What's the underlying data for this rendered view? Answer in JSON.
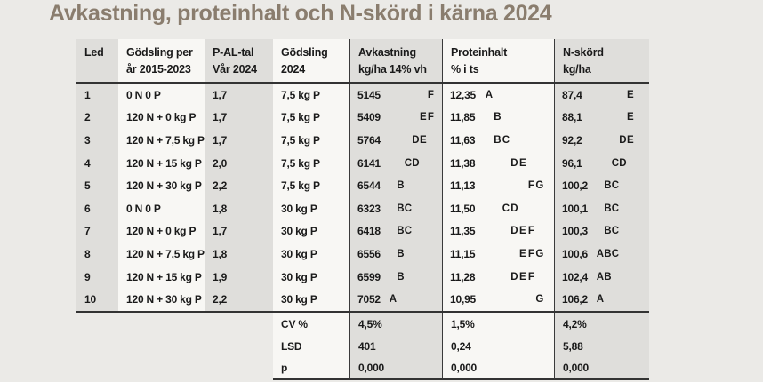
{
  "title": "Avkastning, proteinhalt och N-skörd i kärna 2024",
  "colors": {
    "page_bg": "#ebeae7",
    "band_gray": "#dfdedb",
    "band_white": "#f8f7f4",
    "title_color": "#8a7d6e",
    "rule_color": "#333333",
    "text_color": "#1a1a1a"
  },
  "table": {
    "columns": [
      {
        "id": "led",
        "line1": "Led",
        "line2": ""
      },
      {
        "id": "godsling_per_ar",
        "line1": "Gödsling per",
        "line2": "år 2015-2023"
      },
      {
        "id": "pal",
        "line1": "P-AL-tal",
        "line2": "Vår 2024"
      },
      {
        "id": "godsling_2024",
        "line1": "Gödsling",
        "line2": "2024"
      },
      {
        "id": "avkastning",
        "line1": "Avkastning",
        "line2": "kg/ha 14% vh"
      },
      {
        "id": "proteinhalt",
        "line1": "Proteinhalt",
        "line2": "% i ts"
      },
      {
        "id": "nskord",
        "line1": "N-skörd",
        "line2": "kg/ha"
      }
    ],
    "rows": [
      {
        "led": "1",
        "treatment": "0 N 0 P",
        "pal": "1,7",
        "dose": "7,5 kg P",
        "avkastning": {
          "value": "5145",
          "letters": "F"
        },
        "proteinhalt": {
          "value": "12,35",
          "letters": "A"
        },
        "nskord": {
          "value": "87,4",
          "letters": "E"
        }
      },
      {
        "led": "2",
        "treatment": "120 N + 0 kg P",
        "pal": "1,7",
        "dose": "7,5 kg P",
        "avkastning": {
          "value": "5409",
          "letters": "EF"
        },
        "proteinhalt": {
          "value": "11,85",
          "letters": "B"
        },
        "nskord": {
          "value": "88,1",
          "letters": "E"
        }
      },
      {
        "led": "3",
        "treatment": "120 N + 7,5 kg P",
        "pal": "1,7",
        "dose": "7,5 kg P",
        "avkastning": {
          "value": "5764",
          "letters": "DE"
        },
        "proteinhalt": {
          "value": "11,63",
          "letters": "BC"
        },
        "nskord": {
          "value": "92,2",
          "letters": "DE"
        }
      },
      {
        "led": "4",
        "treatment": "120 N + 15 kg P",
        "pal": "2,0",
        "dose": "7,5 kg P",
        "avkastning": {
          "value": "6141",
          "letters": "CD"
        },
        "proteinhalt": {
          "value": "11,38",
          "letters": "DE"
        },
        "nskord": {
          "value": "96,1",
          "letters": "CD"
        }
      },
      {
        "led": "5",
        "treatment": "120 N + 30 kg P",
        "pal": "2,2",
        "dose": "7,5 kg P",
        "avkastning": {
          "value": "6544",
          "letters": "B"
        },
        "proteinhalt": {
          "value": "11,13",
          "letters": "FG"
        },
        "nskord": {
          "value": "100,2",
          "letters": "BC"
        }
      },
      {
        "led": "6",
        "treatment": "0 N 0 P",
        "pal": "1,8",
        "dose": "30 kg P",
        "avkastning": {
          "value": "6323",
          "letters": "BC"
        },
        "proteinhalt": {
          "value": "11,50",
          "letters": "CD"
        },
        "nskord": {
          "value": "100,1",
          "letters": "BC"
        }
      },
      {
        "led": "7",
        "treatment": "120 N + 0 kg P",
        "pal": "1,7",
        "dose": "30 kg P",
        "avkastning": {
          "value": "6418",
          "letters": "BC"
        },
        "proteinhalt": {
          "value": "11,35",
          "letters": "DEF"
        },
        "nskord": {
          "value": "100,3",
          "letters": "BC"
        }
      },
      {
        "led": "8",
        "treatment": "120 N + 7,5 kg P",
        "pal": "1,8",
        "dose": "30 kg P",
        "avkastning": {
          "value": "6556",
          "letters": "B"
        },
        "proteinhalt": {
          "value": "11,15",
          "letters": "EFG"
        },
        "nskord": {
          "value": "100,6",
          "letters": "ABC"
        }
      },
      {
        "led": "9",
        "treatment": "120 N + 15 kg P",
        "pal": "1,9",
        "dose": "30 kg P",
        "avkastning": {
          "value": "6599",
          "letters": "B"
        },
        "proteinhalt": {
          "value": "11,28",
          "letters": "DEF"
        },
        "nskord": {
          "value": "102,4",
          "letters": "AB"
        }
      },
      {
        "led": "10",
        "treatment": "120 N + 30 kg P",
        "pal": "2,2",
        "dose": "30 kg P",
        "avkastning": {
          "value": "7052",
          "letters": "A"
        },
        "proteinhalt": {
          "value": "10,95",
          "letters": "G"
        },
        "nskord": {
          "value": "106,2",
          "letters": "A"
        }
      }
    ],
    "footer_rows": [
      {
        "label": "CV %",
        "avkastning": "4,5%",
        "proteinhalt": "1,5%",
        "nskord": "4,2%"
      },
      {
        "label": "LSD",
        "avkastning": "401",
        "proteinhalt": "0,24",
        "nskord": "5,88"
      },
      {
        "label": "p",
        "avkastning": "0,000",
        "proteinhalt": "0,000",
        "nskord": "0,000"
      }
    ]
  }
}
